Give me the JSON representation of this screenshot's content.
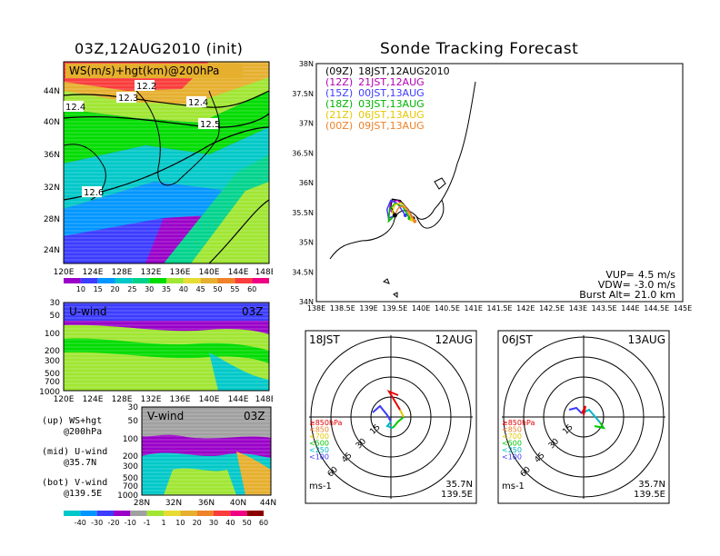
{
  "left_title": "03Z,12AUG2010 (init)",
  "right_title": "Sonde Tracking Forecast",
  "ws_panel": {
    "label": "WS(m/s)+hgt(km)@200hPa",
    "contour_labels": [
      "12.2",
      "12.3",
      "12.4",
      "12.4",
      "12.5",
      "12.6"
    ],
    "lat_ticks": [
      "44N",
      "40N",
      "36N",
      "32N",
      "28N",
      "24N"
    ],
    "lon_ticks": [
      "120E",
      "124E",
      "128E",
      "132E",
      "136E",
      "140E",
      "144E",
      "148E"
    ]
  },
  "ws_colorbar": {
    "labels": [
      "10",
      "15",
      "20",
      "25",
      "30",
      "35",
      "40",
      "45",
      "50",
      "55",
      "60"
    ],
    "colors": [
      "#9a00c8",
      "#3c3cff",
      "#0096ff",
      "#00c8c8",
      "#00d28c",
      "#00dc00",
      "#a0e632",
      "#e6dc32",
      "#e6af2d",
      "#f08228",
      "#fa3c3c",
      "#f00082"
    ]
  },
  "u_panel": {
    "label": "U-wind",
    "time": "03Z",
    "p_ticks": [
      "30",
      "50",
      "100",
      "200",
      "300",
      "500",
      "700",
      "1000"
    ],
    "lon_ticks": [
      "120E",
      "124E",
      "128E",
      "132E",
      "136E",
      "140E",
      "144E",
      "148E"
    ]
  },
  "v_panel": {
    "label": "V-wind",
    "time": "03Z",
    "p_ticks": [
      "30",
      "50",
      "100",
      "200",
      "300",
      "500",
      "700",
      "1000"
    ],
    "lat_ticks": [
      "28N",
      "32N",
      "36N",
      "40N",
      "44N"
    ]
  },
  "legend_notes": [
    {
      "a": "(up) WS+hgt",
      "b": "@200hPa"
    },
    {
      "a": "(mid) U-wind",
      "b": "@35.7N"
    },
    {
      "a": "(bot) V-wind",
      "b": "@139.5E"
    }
  ],
  "uv_colorbar": {
    "labels": [
      "-40",
      "-30",
      "-20",
      "-10",
      "-1",
      "1",
      "10",
      "20",
      "30",
      "40",
      "50",
      "60"
    ],
    "colors": [
      "#00c8c8",
      "#0096ff",
      "#3c3cff",
      "#9a00c8",
      "#a0a0a0",
      "#a0e632",
      "#e6dc32",
      "#e6af2d",
      "#f08228",
      "#fa3c3c",
      "#f00082",
      "#8c0000"
    ]
  },
  "map": {
    "lat_ticks": [
      "38N",
      "37.5N",
      "37N",
      "36.5N",
      "36N",
      "35.5N",
      "35N",
      "34.5N",
      "34N"
    ],
    "lon_ticks": [
      "138E",
      "138.5E",
      "139E",
      "139.5E",
      "140E",
      "140.5E",
      "141E",
      "141.5E",
      "142E",
      "142.5E",
      "143E",
      "143.5E",
      "144E",
      "144.5E",
      "145E"
    ],
    "launches": [
      {
        "utc": "(09Z)",
        "jst": "18JST,12AUG2010",
        "color": "#000000"
      },
      {
        "utc": "(12Z)",
        "jst": "21JST,12AUG",
        "color": "#b400b4"
      },
      {
        "utc": "(15Z)",
        "jst": "00JST,13AUG",
        "color": "#3c3cff"
      },
      {
        "utc": "(18Z)",
        "jst": "03JST,13AUG",
        "color": "#00b400"
      },
      {
        "utc": "(21Z)",
        "jst": "06JST,13AUG",
        "color": "#e6c800"
      },
      {
        "utc": "(00Z)",
        "jst": "09JST,13AUG",
        "color": "#f08228"
      }
    ],
    "params": [
      {
        "label": "VUP=",
        "value": "4.5 m/s"
      },
      {
        "label": "VDW=",
        "value": "-3.0 m/s"
      },
      {
        "label": "Burst Alt=",
        "value": "21.0 km"
      }
    ]
  },
  "hodograph_left": {
    "time": "18JST",
    "date": "12AUG",
    "ring_labels": [
      "15",
      "30",
      "45",
      "60"
    ],
    "units": "ms-1",
    "lat": "35.7N",
    "lon": "139.5E"
  },
  "hodograph_right": {
    "time": "06JST",
    "date": "13AUG",
    "ring_labels": [
      "15",
      "30",
      "45",
      "60"
    ],
    "units": "ms-1",
    "lat": "35.7N",
    "lon": "139.5E"
  },
  "hodo_levels": [
    {
      "label": "≥850hPa",
      "color": "#e60000"
    },
    {
      "label": "<850",
      "color": "#f08228"
    },
    {
      "label": "<700",
      "color": "#e6c800"
    },
    {
      "label": "<500",
      "color": "#00c800"
    },
    {
      "label": "<250",
      "color": "#00b4c8"
    },
    {
      "label": "<100",
      "color": "#3c3cff"
    }
  ],
  "chart_data": [
    {
      "type": "heatmap",
      "title": "WS(m/s)+hgt(km)@200hPa",
      "x_ticks": [
        "120E",
        "124E",
        "128E",
        "132E",
        "136E",
        "140E",
        "144E",
        "148E"
      ],
      "y_ticks": [
        "24N",
        "28N",
        "32N",
        "36N",
        "40N",
        "44N"
      ],
      "colorbar": [
        10,
        15,
        20,
        25,
        30,
        35,
        40,
        45,
        50,
        55,
        60
      ],
      "height_contours_km": [
        12.2,
        12.3,
        12.4,
        12.5,
        12.6
      ]
    },
    {
      "type": "heatmap",
      "title": "U-wind",
      "x_ticks": [
        "120E",
        "124E",
        "128E",
        "132E",
        "136E",
        "140E",
        "144E",
        "148E"
      ],
      "y_ticks_hPa": [
        30,
        50,
        100,
        200,
        300,
        500,
        700,
        1000
      ]
    },
    {
      "type": "heatmap",
      "title": "V-wind",
      "x_ticks": [
        "28N",
        "32N",
        "36N",
        "40N",
        "44N"
      ],
      "y_ticks_hPa": [
        30,
        50,
        100,
        200,
        300,
        500,
        700,
        1000
      ],
      "colorbar": [
        -40,
        -30,
        -20,
        -10,
        -1,
        1,
        10,
        20,
        30,
        40,
        50,
        60
      ]
    },
    {
      "type": "line",
      "title": "Sonde Tracking Forecast",
      "xlim": [
        138,
        145
      ],
      "ylim": [
        34,
        38
      ],
      "launch_point": {
        "lon": 139.5,
        "lat": 35.45
      },
      "series": [
        {
          "name": "(09Z)",
          "x": [
            139.5,
            139.42,
            139.45,
            139.6,
            139.75,
            139.85
          ],
          "y": [
            35.45,
            35.6,
            35.72,
            35.7,
            35.55,
            35.4
          ]
        },
        {
          "name": "(12Z)",
          "x": [
            139.5,
            139.4,
            139.42,
            139.55,
            139.7,
            139.8
          ],
          "y": [
            35.45,
            35.55,
            35.68,
            35.7,
            35.6,
            35.42
          ]
        },
        {
          "name": "(15Z)",
          "x": [
            139.5,
            139.38,
            139.35,
            139.42,
            139.55,
            139.7
          ],
          "y": [
            35.45,
            35.4,
            35.55,
            35.7,
            35.65,
            35.45
          ]
        },
        {
          "name": "(18Z)",
          "x": [
            139.5,
            139.38,
            139.4,
            139.5,
            139.65,
            139.78
          ],
          "y": [
            35.45,
            35.35,
            35.55,
            35.65,
            35.6,
            35.4
          ]
        },
        {
          "name": "(21Z)",
          "x": [
            139.5,
            139.45,
            139.5,
            139.62,
            139.74,
            139.82
          ],
          "y": [
            35.45,
            35.5,
            35.63,
            35.66,
            35.55,
            35.38
          ]
        },
        {
          "name": "(00Z)",
          "x": [
            139.5,
            139.55,
            139.6,
            139.7,
            139.8,
            139.88
          ],
          "y": [
            35.45,
            35.55,
            35.6,
            35.58,
            35.48,
            35.35
          ]
        }
      ]
    }
  ]
}
